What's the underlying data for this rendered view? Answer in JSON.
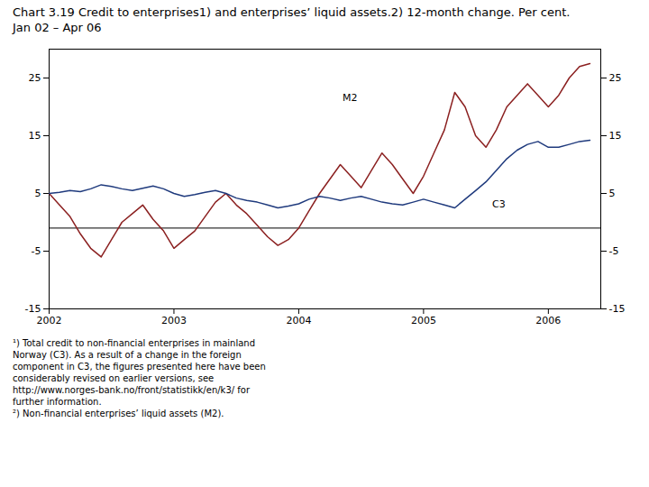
{
  "chart_data": {
    "type": "line",
    "title": "Chart 3.19 Credit to enterprises1) and enterprises’ liquid assets.2) 12-month change. Per cent.",
    "subtitle": "Jan 02 – Apr 06",
    "caption": [
      "¹) Total credit to non-financial enterprises in mainland",
      "Norway (C3). As a result of a change in the foreign",
      "component in C3, the figures presented here have been",
      "considerably revised on earlier versions, see",
      "http://www.norges-bank.no/front/statistikk/en/k3/ for",
      "further information.",
      "²) Non-financial enterprises’ liquid assets (M2)."
    ],
    "x": [
      2002.0,
      2002.083,
      2002.167,
      2002.25,
      2002.333,
      2002.417,
      2002.5,
      2002.583,
      2002.667,
      2002.75,
      2002.833,
      2002.917,
      2003.0,
      2003.083,
      2003.167,
      2003.25,
      2003.333,
      2003.417,
      2003.5,
      2003.583,
      2003.667,
      2003.75,
      2003.833,
      2003.917,
      2004.0,
      2004.083,
      2004.167,
      2004.25,
      2004.333,
      2004.417,
      2004.5,
      2004.583,
      2004.667,
      2004.75,
      2004.833,
      2004.917,
      2005.0,
      2005.083,
      2005.167,
      2005.25,
      2005.333,
      2005.417,
      2005.5,
      2005.583,
      2005.667,
      2005.75,
      2005.833,
      2005.917,
      2006.0,
      2006.083,
      2006.167,
      2006.25,
      2006.333
    ],
    "series": [
      {
        "name": "M2",
        "color": "#8B2020",
        "values": [
          5.0,
          3.0,
          1.0,
          -2.0,
          -4.5,
          -6.0,
          -3.0,
          0.0,
          1.5,
          3.0,
          0.5,
          -1.5,
          -4.5,
          -3.0,
          -1.5,
          1.0,
          3.5,
          5.0,
          3.0,
          1.5,
          -0.5,
          -2.5,
          -4.0,
          -3.0,
          -1.0,
          2.0,
          5.0,
          7.5,
          10.0,
          8.0,
          6.0,
          9.0,
          12.0,
          10.0,
          7.5,
          5.0,
          8.0,
          12.0,
          16.0,
          22.5,
          20.0,
          15.0,
          13.0,
          16.0,
          20.0,
          22.0,
          24.0,
          22.0,
          20.0,
          22.0,
          25.0,
          27.0,
          27.5
        ]
      },
      {
        "name": "C3",
        "color": "#1F3A7D",
        "values": [
          5.0,
          5.2,
          5.5,
          5.3,
          5.8,
          6.5,
          6.2,
          5.8,
          5.5,
          5.9,
          6.3,
          5.8,
          5.0,
          4.5,
          4.8,
          5.2,
          5.5,
          5.0,
          4.2,
          3.8,
          3.5,
          3.0,
          2.5,
          2.8,
          3.2,
          4.0,
          4.5,
          4.2,
          3.8,
          4.2,
          4.5,
          4.0,
          3.5,
          3.2,
          3.0,
          3.5,
          4.0,
          3.5,
          3.0,
          2.5,
          4.0,
          5.5,
          7.0,
          9.0,
          11.0,
          12.5,
          13.5,
          14.0,
          13.0,
          13.0,
          13.5,
          14.0,
          14.2
        ]
      }
    ],
    "hline": -1,
    "annotations": [
      {
        "text": "M2",
        "x": 2004.35,
        "y": 21.5
      },
      {
        "text": "C3",
        "x": 2005.55,
        "y": 3.2
      }
    ],
    "xlim": [
      2002.0,
      2006.42
    ],
    "xticks": [
      2002,
      2003,
      2004,
      2005,
      2006
    ],
    "ylim": [
      -15,
      30
    ],
    "yticks": [
      -15,
      -5,
      5,
      15,
      25
    ],
    "grid": false
  }
}
